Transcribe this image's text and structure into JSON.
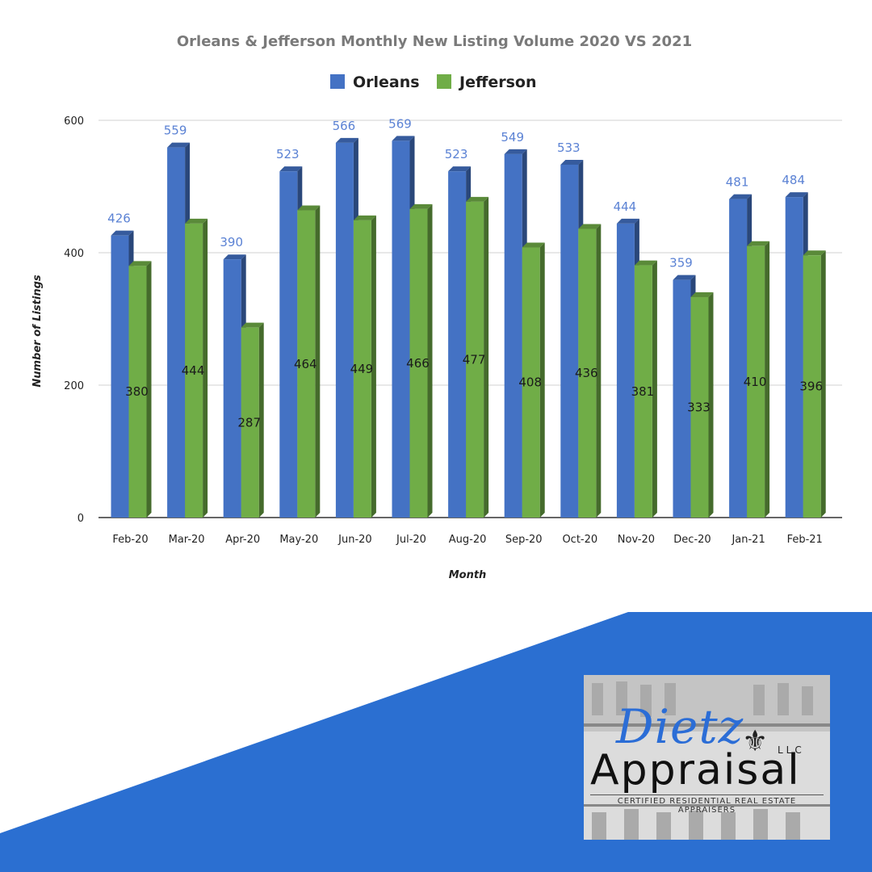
{
  "colors": {
    "orleans": "#4472c4",
    "jefferson": "#70ad47",
    "banner": "#2b6fd1",
    "orleans_label": "#5b82d4"
  },
  "chart_data": {
    "type": "bar",
    "title": "Orleans & Jefferson  Monthly New Listing Volume 2020 VS 2021",
    "xlabel": "Month",
    "ylabel": "Number of Listings",
    "categories": [
      "Feb-20",
      "Mar-20",
      "Apr-20",
      "May-20",
      "Jun-20",
      "Jul-20",
      "Aug-20",
      "Sep-20",
      "Oct-20",
      "Nov-20",
      "Dec-20",
      "Jan-21",
      "Feb-21"
    ],
    "series": [
      {
        "name": "Orleans",
        "values": [
          426,
          559,
          390,
          523,
          566,
          569,
          523,
          549,
          533,
          444,
          359,
          481,
          484
        ]
      },
      {
        "name": "Jefferson",
        "values": [
          380,
          444,
          287,
          464,
          449,
          466,
          477,
          408,
          436,
          381,
          333,
          410,
          396
        ]
      }
    ],
    "ylim": [
      0,
      600
    ],
    "yticks": [
      0,
      200,
      400,
      600
    ],
    "grid": true,
    "legend": "top-center",
    "style": "3d-bars"
  },
  "logo": {
    "script": "Dietz",
    "llc": "LLC",
    "main": "Appraisal",
    "tagline": "CERTIFIED RESIDENTIAL REAL ESTATE APPRAISERS",
    "emblem_icon": "fleur-de-lis-icon",
    "emblem_glyph": "⚜"
  }
}
